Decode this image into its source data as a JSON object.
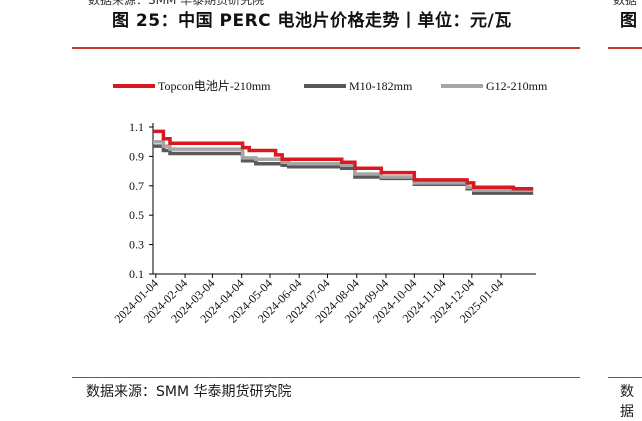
{
  "header": {
    "cut_source_text": "数据来源：SMM 华泰期货研究院",
    "cut_right_text": "数据",
    "title": "图 25：中国 PERC 电池片价格走势丨单位：元/瓦",
    "right_title_fragment": "图"
  },
  "footer": {
    "source": "数据来源：SMM 华泰期货研究院",
    "right_fragment": "数据"
  },
  "chart_data": {
    "type": "line",
    "title": "",
    "xlabel": "",
    "ylabel": "",
    "ylim": [
      0.1,
      1.1
    ],
    "yticks": [
      "1.1",
      "0.9",
      "0.7",
      "0.5",
      "0.3",
      "0.1"
    ],
    "ytick_values": [
      1.1,
      0.9,
      0.7,
      0.5,
      0.3,
      0.1
    ],
    "xlim": [
      "2024-01-01",
      "2025-02-10"
    ],
    "xticks": [
      "2024-01-04",
      "2024-02-04",
      "2024-03-04",
      "2024-04-04",
      "2024-05-04",
      "2024-06-04",
      "2024-07-04",
      "2024-08-04",
      "2024-09-04",
      "2024-10-04",
      "2024-11-04",
      "2024-12-04",
      "2025-01-04"
    ],
    "legend_position": "top",
    "grid": false,
    "series": [
      {
        "name": "Topcon电池片-210mm",
        "color": "#d71920",
        "points": [
          [
            "2024-01-01",
            1.07
          ],
          [
            "2024-01-12",
            1.07
          ],
          [
            "2024-01-12",
            1.02
          ],
          [
            "2024-01-19",
            1.02
          ],
          [
            "2024-01-19",
            0.99
          ],
          [
            "2024-04-05",
            0.99
          ],
          [
            "2024-04-05",
            0.96
          ],
          [
            "2024-04-12",
            0.96
          ],
          [
            "2024-04-12",
            0.94
          ],
          [
            "2024-05-10",
            0.94
          ],
          [
            "2024-05-10",
            0.91
          ],
          [
            "2024-05-17",
            0.91
          ],
          [
            "2024-05-17",
            0.88
          ],
          [
            "2024-07-19",
            0.88
          ],
          [
            "2024-07-19",
            0.86
          ],
          [
            "2024-08-02",
            0.86
          ],
          [
            "2024-08-02",
            0.82
          ],
          [
            "2024-08-30",
            0.82
          ],
          [
            "2024-08-30",
            0.79
          ],
          [
            "2024-10-04",
            0.79
          ],
          [
            "2024-10-04",
            0.74
          ],
          [
            "2024-11-29",
            0.74
          ],
          [
            "2024-11-29",
            0.72
          ],
          [
            "2024-12-06",
            0.72
          ],
          [
            "2024-12-06",
            0.69
          ],
          [
            "2025-01-17",
            0.69
          ],
          [
            "2025-01-17",
            0.68
          ],
          [
            "2025-02-07",
            0.68
          ]
        ]
      },
      {
        "name": "M10-182mm",
        "color": "#595959",
        "points": [
          [
            "2024-01-01",
            0.97
          ],
          [
            "2024-01-12",
            0.97
          ],
          [
            "2024-01-12",
            0.94
          ],
          [
            "2024-01-19",
            0.94
          ],
          [
            "2024-01-19",
            0.92
          ],
          [
            "2024-04-05",
            0.92
          ],
          [
            "2024-04-05",
            0.87
          ],
          [
            "2024-04-19",
            0.87
          ],
          [
            "2024-04-19",
            0.85
          ],
          [
            "2024-05-17",
            0.85
          ],
          [
            "2024-05-17",
            0.84
          ],
          [
            "2024-05-24",
            0.84
          ],
          [
            "2024-05-24",
            0.83
          ],
          [
            "2024-07-19",
            0.83
          ],
          [
            "2024-07-19",
            0.82
          ],
          [
            "2024-08-02",
            0.82
          ],
          [
            "2024-08-02",
            0.76
          ],
          [
            "2024-08-30",
            0.76
          ],
          [
            "2024-08-30",
            0.75
          ],
          [
            "2024-10-04",
            0.75
          ],
          [
            "2024-10-04",
            0.71
          ],
          [
            "2024-11-29",
            0.71
          ],
          [
            "2024-11-29",
            0.68
          ],
          [
            "2024-12-06",
            0.68
          ],
          [
            "2024-12-06",
            0.65
          ],
          [
            "2025-02-07",
            0.65
          ]
        ]
      },
      {
        "name": "G12-210mm",
        "color": "#a6a6a6",
        "points": [
          [
            "2024-01-01",
            1.0
          ],
          [
            "2024-01-12",
            1.0
          ],
          [
            "2024-01-12",
            0.97
          ],
          [
            "2024-01-19",
            0.97
          ],
          [
            "2024-01-19",
            0.95
          ],
          [
            "2024-04-05",
            0.95
          ],
          [
            "2024-04-05",
            0.89
          ],
          [
            "2024-04-19",
            0.89
          ],
          [
            "2024-04-19",
            0.88
          ],
          [
            "2024-05-17",
            0.88
          ],
          [
            "2024-05-17",
            0.86
          ],
          [
            "2024-05-24",
            0.86
          ],
          [
            "2024-05-24",
            0.85
          ],
          [
            "2024-07-19",
            0.85
          ],
          [
            "2024-07-19",
            0.84
          ],
          [
            "2024-08-02",
            0.84
          ],
          [
            "2024-08-02",
            0.78
          ],
          [
            "2024-08-30",
            0.78
          ],
          [
            "2024-08-30",
            0.76
          ],
          [
            "2024-10-04",
            0.76
          ],
          [
            "2024-10-04",
            0.72
          ],
          [
            "2024-11-29",
            0.72
          ],
          [
            "2024-11-29",
            0.69
          ],
          [
            "2024-12-06",
            0.69
          ],
          [
            "2024-12-06",
            0.67
          ],
          [
            "2025-02-07",
            0.67
          ]
        ]
      }
    ]
  }
}
